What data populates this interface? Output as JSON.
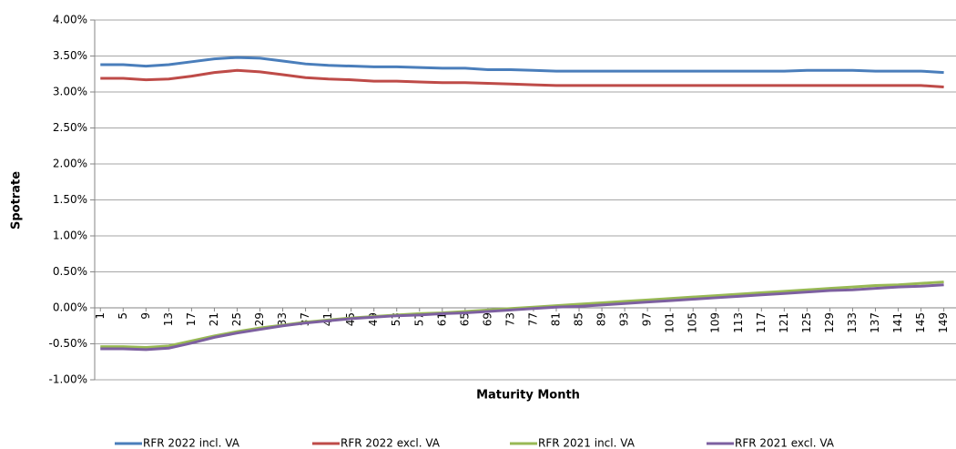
{
  "chart_data": {
    "type": "line",
    "y_label": "Spotrate",
    "x_label": "Maturity Month",
    "x": [
      1,
      5,
      9,
      13,
      17,
      21,
      25,
      29,
      33,
      37,
      41,
      45,
      49,
      53,
      57,
      61,
      65,
      69,
      73,
      77,
      81,
      85,
      89,
      93,
      97,
      101,
      105,
      109,
      113,
      117,
      121,
      125,
      129,
      133,
      137,
      141,
      145,
      149
    ],
    "xlim": [
      0,
      150.5
    ],
    "xticks": [
      1,
      5,
      9,
      13,
      17,
      21,
      25,
      29,
      33,
      37,
      41,
      45,
      49,
      53,
      57,
      61,
      65,
      69,
      73,
      77,
      81,
      85,
      89,
      93,
      97,
      101,
      105,
      109,
      113,
      117,
      121,
      125,
      129,
      133,
      137,
      141,
      145,
      149
    ],
    "ylim": [
      -1,
      4
    ],
    "yticks": [
      {
        "value": -1,
        "label": "-1.00%"
      },
      {
        "value": -0.5,
        "label": "-0.50%"
      },
      {
        "value": 0,
        "label": "0.00%"
      },
      {
        "value": 0.5,
        "label": "0.50%"
      },
      {
        "value": 1,
        "label": "1.00%"
      },
      {
        "value": 1.5,
        "label": "1.50%"
      },
      {
        "value": 2,
        "label": "2.00%"
      },
      {
        "value": 2.5,
        "label": "2.50%"
      },
      {
        "value": 3,
        "label": "3.00%"
      },
      {
        "value": 3.5,
        "label": "3.50%"
      },
      {
        "value": 4,
        "label": "4.00%"
      }
    ],
    "grid": true,
    "legend": "bottom",
    "series": [
      {
        "name": "RFR 2022 incl. VA",
        "color": "#4a7ebb",
        "values": [
          3.38,
          3.38,
          3.36,
          3.38,
          3.42,
          3.46,
          3.48,
          3.47,
          3.43,
          3.39,
          3.37,
          3.36,
          3.35,
          3.35,
          3.34,
          3.33,
          3.33,
          3.31,
          3.31,
          3.3,
          3.29,
          3.29,
          3.29,
          3.29,
          3.29,
          3.29,
          3.29,
          3.29,
          3.29,
          3.29,
          3.29,
          3.3,
          3.3,
          3.3,
          3.29,
          3.29,
          3.29,
          3.27
        ]
      },
      {
        "name": "RFR 2022 excl. VA",
        "color": "#be4b48",
        "values": [
          3.19,
          3.19,
          3.17,
          3.18,
          3.22,
          3.27,
          3.3,
          3.28,
          3.24,
          3.2,
          3.18,
          3.17,
          3.15,
          3.15,
          3.14,
          3.13,
          3.13,
          3.12,
          3.11,
          3.1,
          3.09,
          3.09,
          3.09,
          3.09,
          3.09,
          3.09,
          3.09,
          3.09,
          3.09,
          3.09,
          3.09,
          3.09,
          3.09,
          3.09,
          3.09,
          3.09,
          3.09,
          3.07
        ]
      },
      {
        "name": "RFR 2021 incl. VA",
        "color": "#98b954",
        "values": [
          -0.54,
          -0.54,
          -0.55,
          -0.53,
          -0.46,
          -0.39,
          -0.33,
          -0.28,
          -0.24,
          -0.2,
          -0.17,
          -0.14,
          -0.12,
          -0.1,
          -0.08,
          -0.07,
          -0.05,
          -0.03,
          -0.01,
          0.01,
          0.03,
          0.05,
          0.07,
          0.09,
          0.11,
          0.13,
          0.15,
          0.17,
          0.19,
          0.21,
          0.23,
          0.25,
          0.27,
          0.29,
          0.31,
          0.32,
          0.34,
          0.36
        ]
      },
      {
        "name": "RFR 2021 excl. VA",
        "color": "#7d60a0",
        "values": [
          -0.57,
          -0.57,
          -0.58,
          -0.56,
          -0.49,
          -0.41,
          -0.35,
          -0.3,
          -0.25,
          -0.21,
          -0.18,
          -0.15,
          -0.13,
          -0.11,
          -0.1,
          -0.08,
          -0.07,
          -0.05,
          -0.03,
          -0.01,
          0.01,
          0.02,
          0.04,
          0.06,
          0.08,
          0.1,
          0.12,
          0.14,
          0.16,
          0.18,
          0.2,
          0.22,
          0.24,
          0.25,
          0.27,
          0.29,
          0.3,
          0.32
        ]
      }
    ]
  }
}
